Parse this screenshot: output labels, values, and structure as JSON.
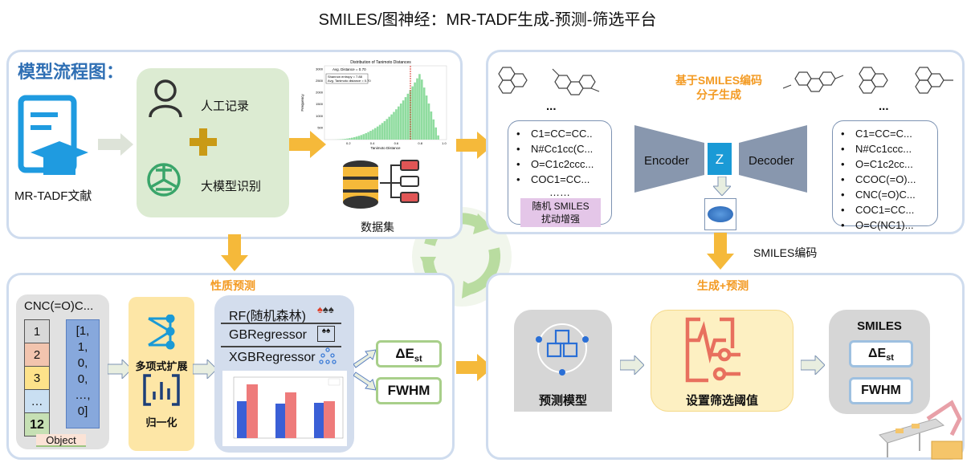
{
  "title": "SMILES/图神经：MR-TADF生成-预测-筛选平台",
  "top_left": {
    "heading": "模型流程图：",
    "doc_label": "MR-TADF文献",
    "manual_label": "人工记录",
    "llm_label": "大模型识别",
    "dataset_label": "数据集",
    "histogram": {
      "title": "Distribution of Tanimoto Distances",
      "legend": "Avg. Distance = 0.70",
      "stats": [
        "Shannon entropy = 7.88",
        "Avg. Tanimoto distance = 0.70"
      ],
      "xlabel": "Tanimoto Distance",
      "ylabel": "Frequency",
      "xticks": [
        "0.2",
        "0.4",
        "0.6",
        "0.8",
        "1.0"
      ],
      "yticks": [
        "500",
        "1000",
        "1500",
        "2000",
        "2500",
        "3000"
      ],
      "color": "#8fdc9f",
      "avg_line_color": "#d9342b"
    }
  },
  "top_right": {
    "heading_line1": "基于SMILES编码",
    "heading_line2": "分子生成",
    "ellipsis": "...",
    "input_smiles": [
      "C1=CC=CC..",
      "N#Cc1cc(C...",
      "O=C1c2ccc...",
      "COC1=CC..."
    ],
    "input_more": "……",
    "augment_line1": "随机 SMILES",
    "augment_line2": "扰动增强",
    "encoder": "Encoder",
    "latent": "Z",
    "decoder": "Decoder",
    "output_smiles": [
      "C1=CC=C...",
      "N#Cc1ccc...",
      "O=C1c2cc...",
      "CCOC(=O)...",
      "CNC(=O)C...",
      "COC1=CC...",
      "O=C(NC1)..."
    ],
    "encoding_label": "SMILES编码"
  },
  "bottom_left": {
    "heading": "性质预测",
    "smiles": "CNC(=O)C...",
    "indices": [
      "1",
      "2",
      "3",
      "…",
      "12"
    ],
    "vector": [
      "[1,",
      "1,",
      "0,",
      "0,",
      "…,",
      "0]"
    ],
    "object_label": "Object",
    "poly_label": "多项式扩展",
    "norm_label": "归一化",
    "models": [
      "RF(随机森林)",
      "GBRegressor",
      "XGBRegressor"
    ],
    "targets": [
      "ΔE",
      "FWHM"
    ],
    "target_sub": "st"
  },
  "bottom_right": {
    "heading": "生成+预测",
    "predict_label": "预测模型",
    "threshold_label": "设置筛选阈值",
    "smiles_label": "SMILES",
    "targets": [
      "ΔE",
      "FWHM"
    ],
    "target_sub": "st"
  },
  "colors": {
    "accent_orange": "#f5b93a",
    "panel_border": "#cfdcee",
    "heading_blue": "#2f6fb4",
    "green_box": "#dcebd2",
    "yellow_box": "#fde6a6"
  }
}
